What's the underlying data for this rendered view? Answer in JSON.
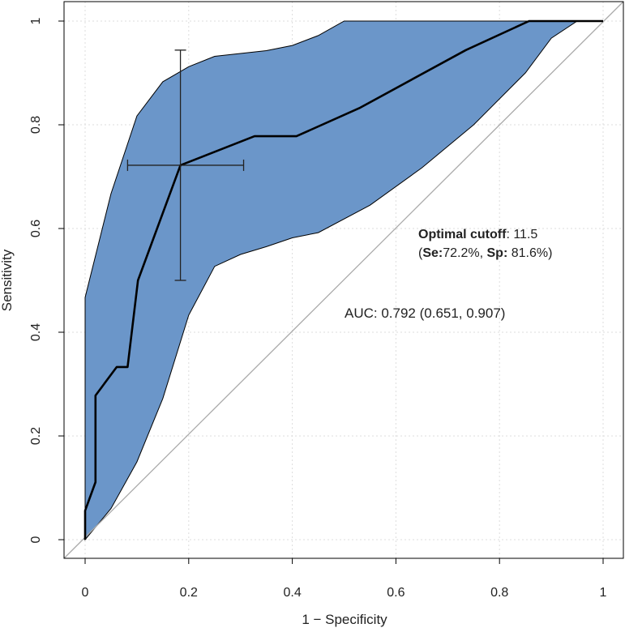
{
  "chart_data": {
    "type": "line",
    "title": "",
    "xlabel": "1 − Specificity",
    "ylabel": "Sensitivity",
    "xlim": [
      0,
      1
    ],
    "ylim": [
      0,
      1
    ],
    "grid": true,
    "xticks": [
      0,
      0.2,
      0.4,
      0.6,
      0.8,
      1
    ],
    "xtick_labels": [
      "0",
      "0.2",
      "0.4",
      "0.6",
      "0.8",
      "1"
    ],
    "yticks": [
      0,
      0.2,
      0.4,
      0.6,
      0.8,
      1
    ],
    "ytick_labels": [
      "0",
      "0.2",
      "0.4",
      "0.6",
      "0.8",
      "1"
    ],
    "colors": {
      "band_fill": "#6b96c9",
      "band_edge": "#000000",
      "roc_line": "#000000",
      "diagonal": "#aaaaaa",
      "grid": "#dddddd"
    },
    "confidence_band": {
      "upper": [
        [
          0,
          0
        ],
        [
          0,
          0.467
        ],
        [
          0.05,
          0.667
        ],
        [
          0.1,
          0.817
        ],
        [
          0.15,
          0.883
        ],
        [
          0.2,
          0.912
        ],
        [
          0.25,
          0.932
        ],
        [
          0.35,
          0.943
        ],
        [
          0.4,
          0.953
        ],
        [
          0.45,
          0.972
        ],
        [
          0.5,
          1
        ],
        [
          0.55,
          1
        ],
        [
          0.6,
          1
        ],
        [
          0.7,
          1
        ],
        [
          0.8,
          1
        ],
        [
          0.85,
          1
        ],
        [
          1,
          1
        ]
      ],
      "lower": [
        [
          1,
          1
        ],
        [
          0.95,
          1
        ],
        [
          0.9,
          0.967
        ],
        [
          0.85,
          0.9
        ],
        [
          0.75,
          0.8
        ],
        [
          0.65,
          0.717
        ],
        [
          0.55,
          0.645
        ],
        [
          0.45,
          0.592
        ],
        [
          0.4,
          0.582
        ],
        [
          0.35,
          0.565
        ],
        [
          0.3,
          0.55
        ],
        [
          0.25,
          0.527
        ],
        [
          0.2,
          0.433
        ],
        [
          0.15,
          0.272
        ],
        [
          0.1,
          0.15
        ],
        [
          0.05,
          0.06
        ],
        [
          0,
          0
        ]
      ]
    },
    "series": [
      {
        "name": "ROC curve",
        "points": [
          [
            0,
            0
          ],
          [
            0,
            0.056
          ],
          [
            0.02,
            0.111
          ],
          [
            0.02,
            0.278
          ],
          [
            0.061,
            0.333
          ],
          [
            0.082,
            0.333
          ],
          [
            0.102,
            0.5
          ],
          [
            0.184,
            0.722
          ],
          [
            0.327,
            0.778
          ],
          [
            0.408,
            0.778
          ],
          [
            0.531,
            0.833
          ],
          [
            0.735,
            0.944
          ],
          [
            0.857,
            1
          ],
          [
            1,
            1
          ]
        ]
      }
    ],
    "diagonal": [
      [
        0,
        0
      ],
      [
        1,
        1
      ]
    ],
    "optimal_point": {
      "x": 0.184,
      "y": 0.722,
      "x_ci": [
        0.082,
        0.306
      ],
      "y_ci": [
        0.5,
        0.944
      ]
    },
    "annotations": {
      "cutoff_label": "Optimal cutoff",
      "cutoff_value": ": 11.5",
      "se_open": "(",
      "se_label": "Se:",
      "se_value": "72.2%, ",
      "sp_label": "Sp:",
      "sp_value": " 81.6%)",
      "auc_text": "AUC: 0.792 (0.651, 0.907)"
    }
  }
}
